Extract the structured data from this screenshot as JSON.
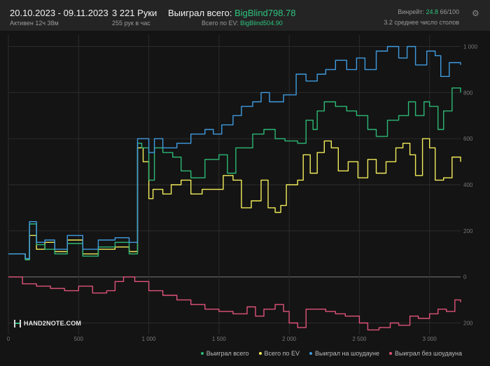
{
  "header": {
    "date_range": "20.10.2023 - 09.11.2023",
    "active": "Активен 12ч 38м",
    "hands": "3 221 Руки",
    "hands_rate": "255 рук в час",
    "won_label": "Выиграл всего: ",
    "won_value": "BigBlind798.78",
    "ev_label": "Всего по EV: ",
    "ev_value": "BigBlind504.90",
    "winrate_label": "Винрейт: ",
    "winrate_value": "24.8",
    "winrate_rest": " 66/100",
    "tables": "3.2 среднее число столов"
  },
  "logo_text": "HAND2NOTE.COM",
  "colors": {
    "won": "#2db875",
    "ev": "#f2ec5a",
    "showdown": "#3f9be0",
    "nonshowdown": "#e0537a",
    "accent": "#2ec27e"
  },
  "chart_data": {
    "type": "line",
    "xlim": [
      0,
      3221
    ],
    "ylim": [
      -250,
      1050
    ],
    "x_ticks": [
      0,
      500,
      1000,
      1500,
      2000,
      2500,
      3000
    ],
    "x_tick_labels": [
      "0",
      "500",
      "1 000",
      "1 500",
      "2 000",
      "2 500",
      "3 000"
    ],
    "y_ticks": [
      -200,
      0,
      200,
      400,
      600,
      800,
      1000
    ],
    "y_tick_labels": [
      "200",
      "0",
      "200",
      "400",
      "600",
      "800",
      "1 000"
    ],
    "legend_position": "bottom-right",
    "series": [
      {
        "name": "Выиграл всего",
        "key": "won",
        "x": [
          0,
          120,
          150,
          200,
          260,
          330,
          420,
          530,
          640,
          760,
          860,
          920,
          950,
          1000,
          1040,
          1100,
          1170,
          1230,
          1300,
          1400,
          1500,
          1560,
          1620,
          1680,
          1740,
          1820,
          1900,
          1970,
          2060,
          2120,
          2170,
          2200,
          2250,
          2330,
          2410,
          2480,
          2560,
          2620,
          2700,
          2780,
          2850,
          2900,
          2960,
          3000,
          3060,
          3100,
          3160,
          3221
        ],
        "y": [
          100,
          75,
          230,
          140,
          120,
          100,
          145,
          90,
          130,
          150,
          100,
          580,
          560,
          420,
          560,
          540,
          520,
          460,
          430,
          510,
          530,
          450,
          560,
          560,
          620,
          640,
          600,
          590,
          580,
          680,
          640,
          720,
          760,
          740,
          720,
          700,
          640,
          610,
          680,
          700,
          760,
          700,
          760,
          740,
          640,
          720,
          820,
          800
        ]
      },
      {
        "name": "Всего по EV",
        "key": "ev",
        "x": [
          0,
          120,
          150,
          200,
          260,
          330,
          420,
          530,
          640,
          760,
          860,
          920,
          960,
          1000,
          1030,
          1100,
          1160,
          1230,
          1300,
          1380,
          1460,
          1530,
          1600,
          1660,
          1730,
          1800,
          1850,
          1900,
          1940,
          1980,
          2060,
          2100,
          2150,
          2200,
          2250,
          2300,
          2350,
          2420,
          2490,
          2560,
          2620,
          2690,
          2760,
          2810,
          2860,
          2900,
          2950,
          3000,
          3040,
          3100,
          3160,
          3221
        ],
        "y": [
          100,
          75,
          180,
          120,
          150,
          110,
          160,
          100,
          120,
          130,
          110,
          560,
          500,
          340,
          380,
          360,
          400,
          420,
          360,
          380,
          380,
          440,
          420,
          300,
          330,
          420,
          300,
          280,
          310,
          400,
          420,
          530,
          450,
          540,
          590,
          560,
          460,
          500,
          430,
          510,
          450,
          500,
          560,
          580,
          530,
          440,
          600,
          560,
          420,
          430,
          520,
          500
        ]
      },
      {
        "name": "Выиграл на шоудауне",
        "key": "showdown",
        "x": [
          0,
          120,
          150,
          200,
          260,
          330,
          420,
          530,
          640,
          760,
          860,
          920,
          1000,
          1040,
          1100,
          1200,
          1300,
          1400,
          1460,
          1520,
          1600,
          1660,
          1740,
          1800,
          1860,
          1960,
          2050,
          2120,
          2200,
          2260,
          2330,
          2410,
          2480,
          2540,
          2620,
          2700,
          2780,
          2840,
          2900,
          2980,
          3040,
          3080,
          3140,
          3221
        ],
        "y": [
          100,
          80,
          240,
          150,
          160,
          120,
          180,
          120,
          160,
          170,
          150,
          600,
          540,
          600,
          560,
          580,
          620,
          640,
          620,
          660,
          700,
          740,
          760,
          800,
          760,
          790,
          880,
          850,
          880,
          900,
          940,
          900,
          950,
          900,
          980,
          1000,
          950,
          1000,
          920,
          980,
          960,
          870,
          930,
          920
        ]
      },
      {
        "name": "Выиграл без шоудауна",
        "key": "nonshowdown",
        "x": [
          0,
          100,
          200,
          300,
          400,
          500,
          600,
          700,
          760,
          820,
          900,
          1000,
          1100,
          1200,
          1300,
          1400,
          1500,
          1600,
          1700,
          1760,
          1820,
          1900,
          1960,
          2000,
          2060,
          2120,
          2200,
          2260,
          2330,
          2400,
          2500,
          2560,
          2640,
          2720,
          2780,
          2860,
          2920,
          3000,
          3060,
          3120,
          3180,
          3221
        ],
        "y": [
          0,
          -30,
          -40,
          -50,
          -60,
          -40,
          -70,
          -60,
          -20,
          0,
          -20,
          -60,
          -80,
          -100,
          -120,
          -140,
          -150,
          -160,
          -130,
          -170,
          -140,
          -120,
          -150,
          -200,
          -220,
          -140,
          -140,
          -150,
          -160,
          -170,
          -200,
          -230,
          -220,
          -200,
          -210,
          -170,
          -180,
          -160,
          -140,
          -150,
          -100,
          -110
        ]
      }
    ]
  }
}
